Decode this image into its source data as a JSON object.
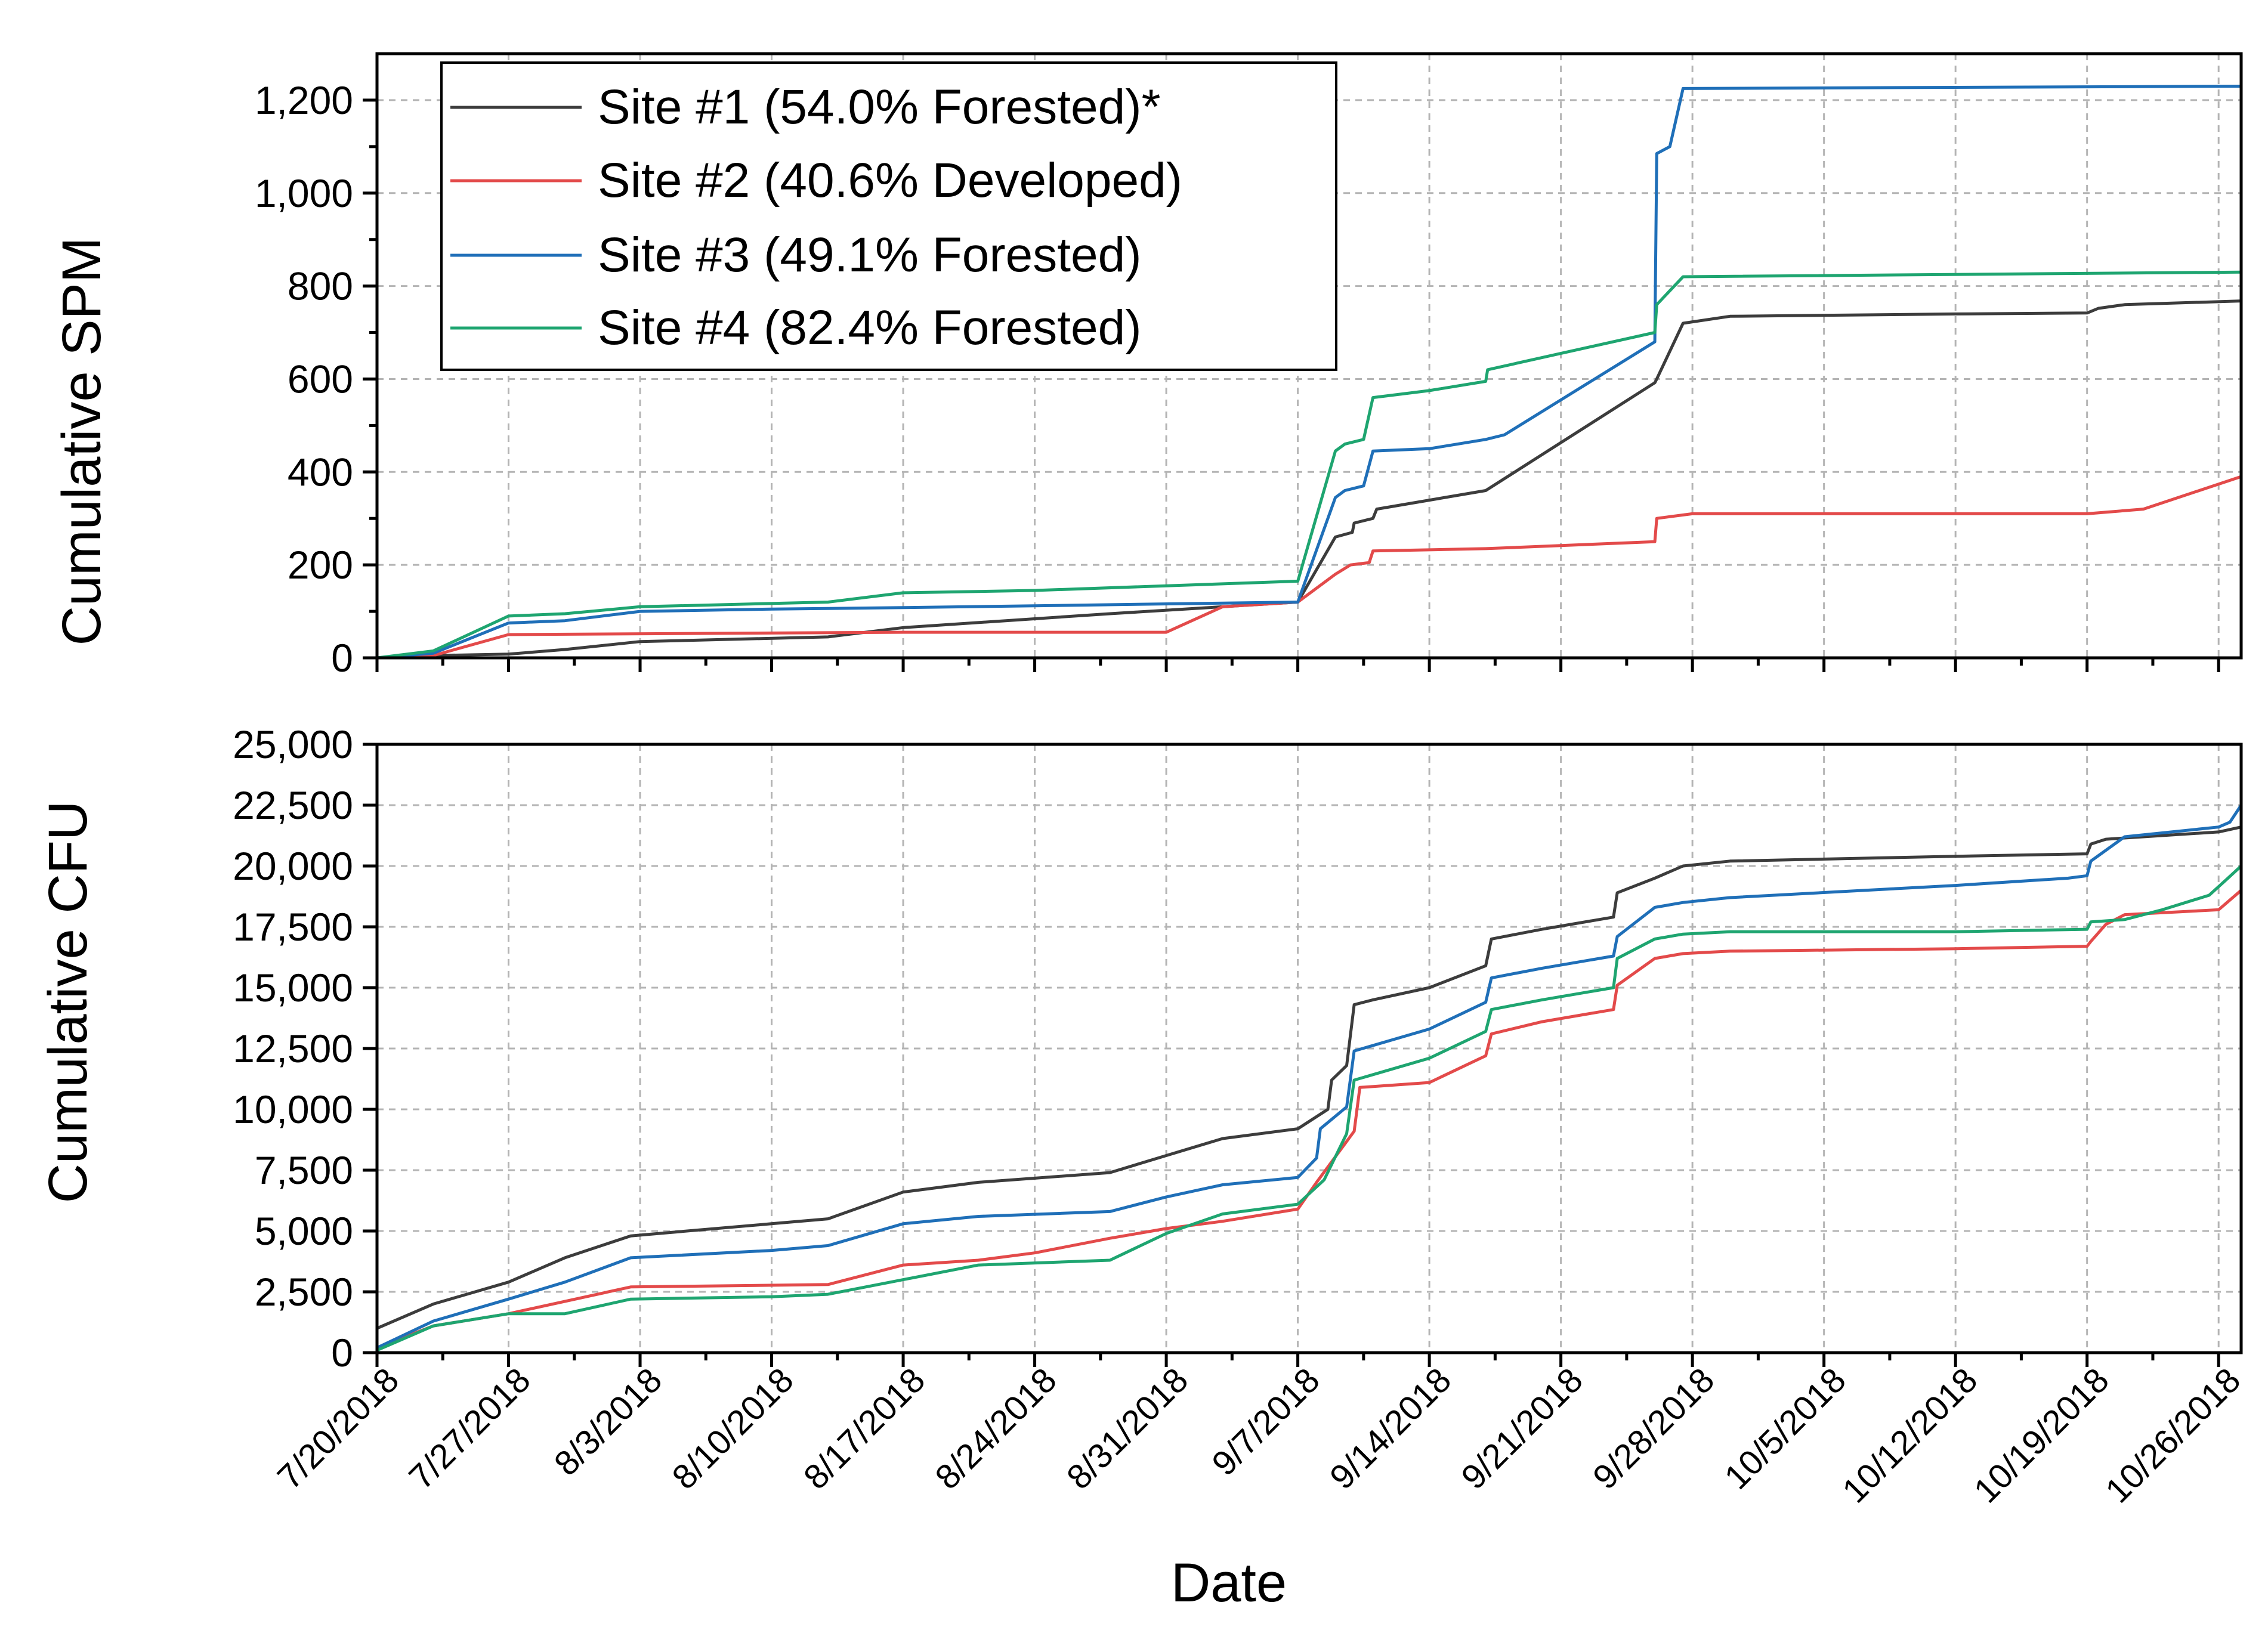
{
  "chart_data": [
    {
      "type": "line",
      "ylabel": "Cumulative SPM",
      "xlabel": "",
      "ylim": [
        0,
        1300
      ],
      "xlim": [
        0,
        99.2
      ],
      "x_tick_days": [
        0,
        7,
        14,
        21,
        28,
        35,
        42,
        49,
        56,
        63,
        70,
        77,
        84,
        91,
        98
      ],
      "yticks": [
        0,
        200,
        400,
        600,
        800,
        1000,
        1200
      ],
      "ytick_labels": [
        "0",
        "200",
        "400",
        "600",
        "800",
        "1,000",
        "1,200"
      ],
      "grid": true,
      "legend_position": "top-left",
      "legend": [
        "Site #1 (54.0% Forested)*",
        "Site #2 (40.6% Developed)",
        "Site #3 (49.1% Forested)",
        "Site #4 (82.4% Forested)"
      ],
      "series": [
        {
          "name": "Site #1 (54.0% Forested)*",
          "color": "#3c3c3c",
          "x": [
            0,
            3,
            7,
            10,
            14,
            24,
            28,
            39,
            49,
            51,
            51.9,
            52,
            53,
            53.2,
            59,
            68,
            68.1,
            69.5,
            72,
            84,
            91,
            91.6,
            93,
            99.2
          ],
          "y": [
            0,
            5,
            8,
            18,
            35,
            45,
            65,
            95,
            120,
            260,
            270,
            290,
            300,
            320,
            360,
            592,
            600,
            720,
            735,
            740,
            742,
            752,
            760,
            768
          ]
        },
        {
          "name": "Site #2 (40.6% Developed)",
          "color": "#e34a4a",
          "x": [
            0,
            3,
            7,
            28,
            42,
            45,
            49,
            51,
            51.8,
            52.8,
            53,
            59,
            68,
            68.1,
            70,
            91,
            94,
            99.2
          ],
          "y": [
            0,
            5,
            50,
            55,
            55,
            110,
            120,
            180,
            200,
            205,
            230,
            235,
            250,
            300,
            310,
            310,
            320,
            390
          ]
        },
        {
          "name": "Site #3 (49.1% Forested)",
          "color": "#1f6fb8",
          "x": [
            0,
            3,
            7,
            10,
            14,
            21,
            28,
            49,
            51,
            51.5,
            52.5,
            53,
            56,
            59,
            60,
            68,
            68.1,
            68.8,
            69.5,
            99.2
          ],
          "y": [
            0,
            10,
            75,
            80,
            100,
            105,
            108,
            120,
            345,
            360,
            370,
            445,
            450,
            470,
            480,
            680,
            1085,
            1100,
            1225,
            1230
          ]
        },
        {
          "name": "Site #4 (82.4% Forested)",
          "color": "#1ea570",
          "x": [
            0,
            3,
            7,
            10,
            14,
            24,
            28,
            35,
            42,
            49,
            51,
            51.5,
            52.5,
            53,
            56,
            59,
            59.1,
            68,
            68.1,
            69.5,
            99.2
          ],
          "y": [
            0,
            15,
            90,
            95,
            110,
            120,
            140,
            145,
            155,
            165,
            445,
            460,
            470,
            560,
            575,
            595,
            620,
            700,
            760,
            820,
            830
          ]
        }
      ]
    },
    {
      "type": "line",
      "ylabel": "Cumulative CFU",
      "xlabel": "Date",
      "ylim": [
        0,
        25000
      ],
      "xlim": [
        0,
        99.2
      ],
      "x_tick_days": [
        0,
        7,
        14,
        21,
        28,
        35,
        42,
        49,
        56,
        63,
        70,
        77,
        84,
        91,
        98
      ],
      "xtick_labels": [
        "7/20/2018",
        "7/27/2018",
        "8/3/2018",
        "8/10/2018",
        "8/17/2018",
        "8/24/2018",
        "8/31/2018",
        "9/7/2018",
        "9/14/2018",
        "9/21/2018",
        "9/28/2018",
        "10/5/2018",
        "10/12/2018",
        "10/19/2018",
        "10/26/2018"
      ],
      "yticks": [
        0,
        2500,
        5000,
        7500,
        10000,
        12500,
        15000,
        17500,
        20000,
        22500,
        25000
      ],
      "ytick_labels": [
        "0",
        "2,500",
        "5,000",
        "7,500",
        "10,000",
        "12,500",
        "15,000",
        "17,500",
        "20,000",
        "22,500",
        "25,000"
      ],
      "grid": true,
      "series": [
        {
          "name": "Site #1 (54.0% Forested)*",
          "color": "#3c3c3c",
          "x": [
            0,
            3,
            7,
            10,
            13.5,
            21,
            24,
            28,
            32,
            39,
            42,
            45,
            49,
            50.6,
            50.8,
            51.6,
            52,
            53,
            56,
            59,
            59.3,
            62,
            65.8,
            66,
            68,
            69.5,
            72,
            84,
            91,
            91.2,
            92,
            94,
            98,
            99.2
          ],
          "y": [
            1000,
            2000,
            2900,
            3900,
            4800,
            5300,
            5500,
            6600,
            7000,
            7400,
            8100,
            8800,
            9200,
            10000,
            11200,
            11800,
            14300,
            14500,
            15000,
            15900,
            17000,
            17400,
            17900,
            18900,
            19500,
            20000,
            20200,
            20400,
            20500,
            20900,
            21100,
            21200,
            21400,
            21600
          ]
        },
        {
          "name": "Site #2 (40.6% Developed)",
          "color": "#e34a4a",
          "x": [
            0,
            3,
            7,
            13.5,
            24,
            28,
            32,
            35,
            39,
            42,
            45,
            49,
            50,
            52,
            52.3,
            56,
            59,
            59.3,
            62,
            65.8,
            66,
            68,
            69.5,
            72,
            84,
            91,
            91.2,
            92,
            93,
            98,
            99.2
          ],
          "y": [
            200,
            1100,
            1600,
            2700,
            2800,
            3600,
            3800,
            4100,
            4700,
            5100,
            5400,
            5900,
            7000,
            9100,
            10900,
            11100,
            12200,
            13100,
            13600,
            14100,
            15100,
            16200,
            16400,
            16500,
            16600,
            16700,
            16900,
            17600,
            18000,
            18200,
            19000
          ]
        },
        {
          "name": "Site #3 (49.1% Forested)",
          "color": "#1f6fb8",
          "x": [
            0,
            3,
            7,
            10,
            13.5,
            21,
            24,
            28,
            32,
            39,
            42,
            45,
            49,
            50,
            50.2,
            51.6,
            52,
            56,
            59,
            59.3,
            62,
            65.8,
            66,
            68,
            69.5,
            72,
            84,
            90,
            91,
            91.2,
            93,
            98,
            98.6,
            99.2
          ],
          "y": [
            200,
            1300,
            2200,
            2900,
            3900,
            4200,
            4400,
            5300,
            5600,
            5800,
            6400,
            6900,
            7200,
            8000,
            9200,
            10100,
            12400,
            13300,
            14400,
            15400,
            15800,
            16300,
            17100,
            18300,
            18500,
            18700,
            19200,
            19500,
            19600,
            20200,
            21200,
            21600,
            21800,
            22500
          ]
        },
        {
          "name": "Site #4 (82.4% Forested)",
          "color": "#1ea570",
          "x": [
            0,
            3,
            7,
            10,
            13.5,
            21,
            24,
            28,
            32,
            39,
            42,
            45,
            49,
            50.4,
            51.6,
            52,
            56,
            59,
            59.3,
            62,
            65.8,
            66,
            68,
            69.5,
            72,
            84,
            91,
            91.2,
            93,
            95,
            97.5,
            98.5,
            99.2
          ],
          "y": [
            100,
            1100,
            1600,
            1600,
            2200,
            2300,
            2400,
            3000,
            3600,
            3800,
            4900,
            5700,
            6100,
            7100,
            9000,
            11200,
            12100,
            13200,
            14100,
            14500,
            15000,
            16200,
            17000,
            17200,
            17300,
            17300,
            17400,
            17700,
            17800,
            18200,
            18800,
            19500,
            20000
          ]
        }
      ]
    }
  ]
}
